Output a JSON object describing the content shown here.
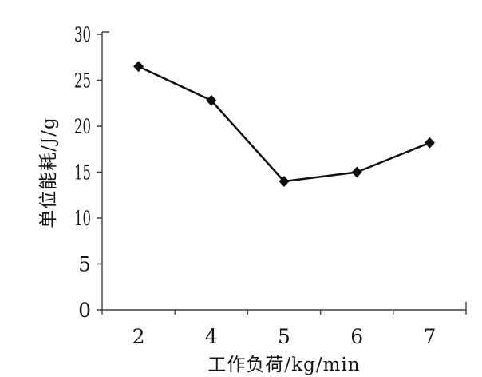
{
  "chart_data": {
    "type": "line",
    "title": "",
    "categories": [
      "2",
      "4",
      "5",
      "6",
      "7"
    ],
    "series": [
      {
        "name": "单位能耗",
        "values": [
          26.5,
          22.8,
          14.0,
          15.0,
          18.2
        ]
      }
    ],
    "xlabel": "工作负荷/kg/min",
    "ylabel": "单位能耗/J/g",
    "ylim": [
      0,
      30
    ],
    "yticks": [
      0,
      5,
      10,
      15,
      20,
      25,
      30
    ],
    "grid": false,
    "legend_position": "none",
    "marker_shape": "diamond",
    "line_color": "#0f0f0f",
    "marker_color": "#0f0f0f",
    "axis_color": "#3f3f3f",
    "text_color": "#161616",
    "background_color": "#ffffff"
  }
}
